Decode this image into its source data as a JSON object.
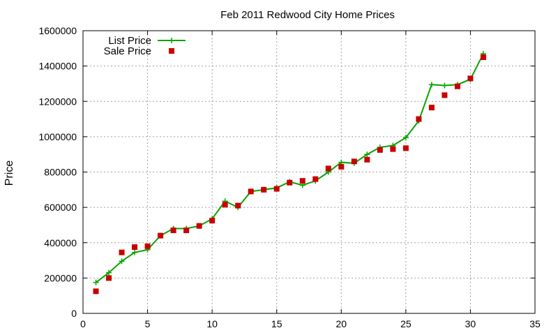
{
  "chart_data": {
    "type": "line",
    "title": "Feb 2011 Redwood City Home Prices",
    "xlabel": "",
    "ylabel": "Price",
    "xlim": [
      0,
      35
    ],
    "ylim": [
      0,
      1600000
    ],
    "xticks": [
      0,
      5,
      10,
      15,
      20,
      25,
      30,
      35
    ],
    "yticks": [
      0,
      200000,
      400000,
      600000,
      800000,
      1000000,
      1200000,
      1400000,
      1600000
    ],
    "grid": true,
    "legend_position": "top-left",
    "series": [
      {
        "name": "List Price",
        "style": "line+plus",
        "color": "#0aa300",
        "x": [
          1,
          2,
          3,
          4,
          5,
          6,
          7,
          8,
          9,
          10,
          11,
          12,
          13,
          14,
          15,
          16,
          17,
          18,
          19,
          20,
          21,
          22,
          23,
          24,
          25,
          26,
          27,
          28,
          29,
          30,
          31
        ],
        "y": [
          175000,
          230000,
          295000,
          345000,
          360000,
          440000,
          480000,
          480000,
          495000,
          535000,
          635000,
          600000,
          690000,
          700000,
          710000,
          745000,
          725000,
          750000,
          800000,
          855000,
          850000,
          900000,
          940000,
          950000,
          995000,
          1090000,
          1295000,
          1290000,
          1295000,
          1325000,
          1470000
        ]
      },
      {
        "name": "Sale Price",
        "style": "square",
        "color": "#c80000",
        "x": [
          1,
          2,
          3,
          4,
          5,
          6,
          7,
          8,
          9,
          10,
          11,
          12,
          13,
          14,
          15,
          16,
          17,
          18,
          19,
          20,
          21,
          22,
          23,
          24,
          25,
          26,
          27,
          28,
          29,
          30,
          31
        ],
        "y": [
          125000,
          200000,
          345000,
          375000,
          380000,
          440000,
          470000,
          470000,
          495000,
          525000,
          615000,
          610000,
          690000,
          700000,
          705000,
          740000,
          750000,
          760000,
          820000,
          830000,
          860000,
          870000,
          925000,
          930000,
          935000,
          1100000,
          1165000,
          1235000,
          1285000,
          1330000,
          1450000
        ]
      }
    ]
  }
}
